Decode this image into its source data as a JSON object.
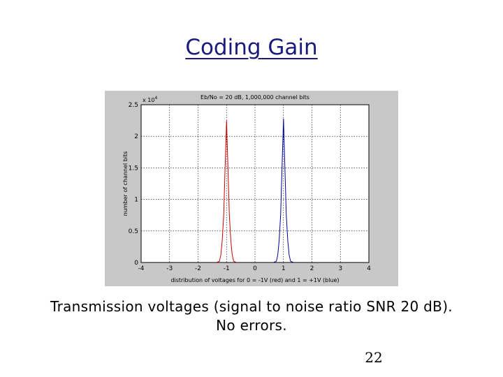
{
  "slide": {
    "title": "Coding Gain",
    "caption_line1": "Transmission voltages (signal to noise ratio SNR 20 dB).",
    "caption_line2": "No errors.",
    "page_number": "22"
  },
  "chart_data": {
    "type": "line",
    "title": "Eb/No = 20 dB, 1,000,000 channel bits",
    "xlabel": "distribution of voltages for 0 = -1V (red) and 1 = +1V (blue)",
    "ylabel": "number of channel bits",
    "y_multiplier": "x 10",
    "y_multiplier_exp": "4",
    "xlim": [
      -4,
      4
    ],
    "ylim": [
      0,
      2.5
    ],
    "x_ticks": [
      -4,
      -3,
      -2,
      -1,
      0,
      1,
      2,
      3,
      4
    ],
    "y_ticks": [
      0,
      0.5,
      1,
      1.5,
      2,
      2.5
    ],
    "y_tick_labels": [
      "0",
      "0.5",
      "1",
      "1.5",
      "2",
      "2.5"
    ],
    "grid": true,
    "series": [
      {
        "color": "#cc0000",
        "x": [
          -1.35,
          -1.25,
          -1.2,
          -1.15,
          -1.1,
          -1.05,
          -1.0,
          -0.95,
          -0.9,
          -0.85,
          -0.8,
          -0.75,
          -0.65
        ],
        "y": [
          0,
          0.02,
          0.12,
          0.35,
          0.75,
          1.5,
          2.25,
          1.5,
          0.75,
          0.35,
          0.12,
          0.02,
          0
        ]
      },
      {
        "color": "#000099",
        "x": [
          0.65,
          0.75,
          0.8,
          0.85,
          0.9,
          0.95,
          1.0,
          1.05,
          1.1,
          1.15,
          1.2,
          1.25,
          1.35
        ],
        "y": [
          0,
          0.02,
          0.12,
          0.35,
          0.75,
          1.5,
          2.28,
          1.5,
          0.75,
          0.35,
          0.12,
          0.02,
          0
        ]
      }
    ]
  },
  "colors": {
    "title": "#1a1a7a",
    "figure_background": "#c8c8c8",
    "grid": "#000000"
  }
}
